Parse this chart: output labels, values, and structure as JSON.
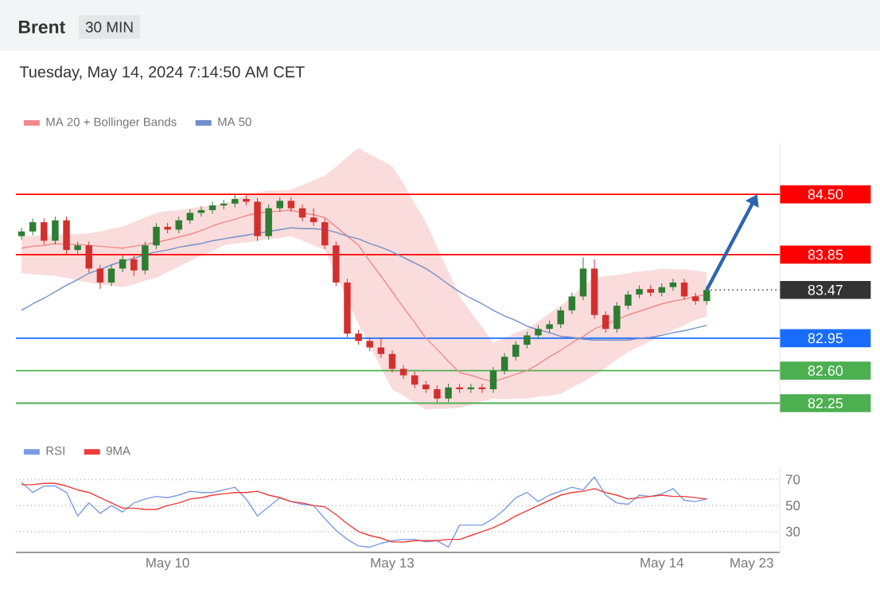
{
  "chart_data": [
    {
      "type": "candlestick",
      "title": "Brent",
      "subtitle": "30 MIN",
      "annotations": [
        "Tuesday, May 14, 2024 7:14:50 AM CET"
      ],
      "categories": [
        null,
        null,
        null,
        null,
        null,
        null,
        null,
        null,
        null,
        null,
        null,
        null,
        null,
        null,
        null,
        null,
        null,
        null,
        null,
        null,
        null,
        null,
        null,
        null,
        null,
        null,
        null,
        null,
        null,
        null,
        null,
        null,
        null,
        null,
        null,
        null,
        null,
        null,
        null,
        null,
        null,
        null,
        null,
        null,
        null,
        null,
        null,
        null,
        null,
        null,
        null,
        null,
        null,
        null,
        null,
        null,
        null,
        null,
        null,
        null,
        null,
        null,
        null,
        null,
        null,
        null,
        null,
        null
      ],
      "ohlc": [
        [
          84.05,
          84.14,
          84.01,
          84.1
        ],
        [
          84.1,
          84.24,
          84.06,
          84.2
        ],
        [
          84.2,
          84.24,
          83.96,
          84.0
        ],
        [
          84.0,
          84.26,
          83.96,
          84.22
        ],
        [
          84.22,
          84.26,
          83.86,
          83.9
        ],
        [
          83.9,
          83.99,
          83.86,
          83.95
        ],
        [
          83.95,
          83.99,
          83.66,
          83.7
        ],
        [
          83.7,
          83.74,
          83.48,
          83.55
        ],
        [
          83.55,
          83.74,
          83.51,
          83.7
        ],
        [
          83.7,
          83.84,
          83.66,
          83.8
        ],
        [
          83.8,
          83.84,
          83.62,
          83.68
        ],
        [
          83.68,
          83.99,
          83.64,
          83.95
        ],
        [
          83.95,
          84.19,
          83.91,
          84.15
        ],
        [
          84.15,
          84.19,
          84.08,
          84.12
        ],
        [
          84.12,
          84.26,
          84.08,
          84.22
        ],
        [
          84.22,
          84.34,
          84.18,
          84.3
        ],
        [
          84.3,
          84.37,
          84.26,
          84.33
        ],
        [
          84.33,
          84.42,
          84.29,
          84.38
        ],
        [
          84.38,
          84.44,
          84.34,
          84.4
        ],
        [
          84.4,
          84.5,
          84.36,
          84.45
        ],
        [
          84.45,
          84.49,
          84.38,
          84.42
        ],
        [
          84.42,
          84.46,
          84.0,
          84.05
        ],
        [
          84.05,
          84.39,
          84.01,
          84.35
        ],
        [
          84.35,
          84.47,
          84.31,
          84.43
        ],
        [
          84.43,
          84.47,
          84.31,
          84.35
        ],
        [
          84.35,
          84.39,
          84.21,
          84.25
        ],
        [
          84.25,
          84.35,
          84.16,
          84.2
        ],
        [
          84.2,
          84.24,
          83.91,
          83.95
        ],
        [
          83.95,
          83.99,
          83.51,
          83.55
        ],
        [
          83.55,
          83.59,
          82.96,
          83.0
        ],
        [
          83.0,
          83.04,
          82.88,
          82.92
        ],
        [
          82.92,
          82.96,
          82.81,
          82.85
        ],
        [
          82.85,
          82.95,
          82.74,
          82.78
        ],
        [
          82.78,
          82.82,
          82.58,
          82.62
        ],
        [
          82.62,
          82.66,
          82.51,
          82.55
        ],
        [
          82.55,
          82.59,
          82.41,
          82.45
        ],
        [
          82.45,
          82.49,
          82.36,
          82.4
        ],
        [
          82.4,
          82.44,
          82.26,
          82.3
        ],
        [
          82.3,
          82.46,
          82.26,
          82.42
        ],
        [
          82.42,
          82.46,
          82.36,
          82.4
        ],
        [
          82.4,
          82.46,
          82.36,
          82.42
        ],
        [
          82.42,
          82.46,
          82.36,
          82.4
        ],
        [
          82.4,
          82.64,
          82.36,
          82.6
        ],
        [
          82.6,
          82.79,
          82.56,
          82.75
        ],
        [
          82.75,
          82.92,
          82.71,
          82.88
        ],
        [
          82.88,
          83.02,
          82.84,
          82.98
        ],
        [
          82.98,
          83.09,
          82.94,
          83.05
        ],
        [
          83.05,
          83.14,
          83.01,
          83.1
        ],
        [
          83.1,
          83.29,
          83.06,
          83.25
        ],
        [
          83.25,
          83.44,
          83.21,
          83.4
        ],
        [
          83.4,
          83.82,
          83.36,
          83.7
        ],
        [
          83.7,
          83.8,
          83.16,
          83.2
        ],
        [
          83.2,
          83.24,
          83.01,
          83.05
        ],
        [
          83.05,
          83.34,
          83.01,
          83.3
        ],
        [
          83.3,
          83.46,
          83.26,
          83.42
        ],
        [
          83.42,
          83.52,
          83.38,
          83.48
        ],
        [
          83.48,
          83.52,
          83.4,
          83.44
        ],
        [
          83.44,
          83.54,
          83.4,
          83.5
        ],
        [
          83.5,
          83.59,
          83.46,
          83.55
        ],
        [
          83.55,
          83.59,
          83.36,
          83.4
        ],
        [
          83.4,
          83.44,
          83.31,
          83.35
        ],
        [
          83.35,
          83.51,
          83.31,
          83.47
        ],
        null,
        null,
        null,
        null,
        null,
        null
      ],
      "series": [
        {
          "name": "MA 20 + Bollinger Bands",
          "type": "line",
          "color": "#f08a8a",
          "values": [
            83.92,
            83.94,
            83.95,
            83.97,
            83.96,
            83.96,
            83.95,
            83.94,
            83.93,
            83.92,
            83.94,
            83.96,
            83.98,
            84.01,
            84.04,
            84.07,
            84.11,
            84.16,
            84.2,
            84.23,
            84.27,
            84.3,
            84.31,
            84.32,
            84.33,
            84.3,
            84.28,
            84.25,
            84.15,
            84.05,
            83.95,
            83.78,
            83.62,
            83.45,
            83.28,
            83.12,
            82.95,
            82.83,
            82.7,
            82.58,
            82.55,
            82.51,
            82.48,
            82.52,
            82.56,
            82.6,
            82.67,
            82.75,
            82.82,
            82.9,
            82.97,
            83.05,
            83.1,
            83.15,
            83.2,
            83.24,
            83.28,
            83.32,
            83.35,
            83.37,
            83.4,
            83.42,
            null,
            null,
            null,
            null,
            null,
            null
          ],
          "lower": [
            83.65,
            83.64,
            83.63,
            83.62,
            83.6,
            83.57,
            83.55,
            83.53,
            83.52,
            83.5,
            83.53,
            83.57,
            83.6,
            83.66,
            83.72,
            83.78,
            83.84,
            83.89,
            83.95,
            83.97,
            83.98,
            84.0,
            84.02,
            84.03,
            84.05,
            84.0,
            83.95,
            83.9,
            83.63,
            83.37,
            83.1,
            82.87,
            82.63,
            82.4,
            82.33,
            82.25,
            82.18,
            82.19,
            82.19,
            82.2,
            82.23,
            82.27,
            82.3,
            82.29,
            82.3,
            82.3,
            82.32,
            82.33,
            82.35,
            82.42,
            82.48,
            82.55,
            82.63,
            82.72,
            82.8,
            82.86,
            82.92,
            82.98,
            83.04,
            83.09,
            83.15,
            83.18,
            null,
            null,
            null,
            null,
            null,
            null
          ],
          "upper": [
            84.05,
            84.05,
            84.06,
            84.06,
            84.07,
            84.07,
            84.08,
            84.1,
            84.13,
            84.15,
            84.2,
            84.25,
            84.3,
            84.32,
            84.33,
            84.35,
            84.37,
            84.38,
            84.4,
            84.45,
            84.49,
            84.52,
            84.54,
            84.54,
            84.55,
            84.6,
            84.65,
            84.7,
            84.8,
            84.9,
            85.0,
            84.93,
            84.87,
            84.8,
            84.62,
            84.4,
            84.2,
            83.93,
            83.67,
            83.4,
            83.23,
            83.07,
            82.9,
            82.95,
            83.01,
            83.05,
            83.13,
            83.22,
            83.3,
            83.4,
            83.52,
            83.6,
            83.62,
            83.63,
            83.65,
            83.67,
            83.68,
            83.7,
            83.69,
            83.69,
            83.68,
            83.66,
            null,
            null,
            null,
            null,
            null,
            null
          ]
        },
        {
          "name": "MA 50",
          "type": "line",
          "color": "#6f8fc8",
          "values": [
            83.25,
            83.32,
            83.38,
            83.45,
            83.52,
            83.58,
            83.65,
            83.69,
            83.74,
            83.78,
            83.81,
            83.85,
            83.88,
            83.9,
            83.93,
            83.95,
            83.97,
            84.0,
            84.02,
            84.04,
            84.06,
            84.08,
            84.1,
            84.12,
            84.14,
            84.13,
            84.13,
            84.12,
            84.09,
            84.05,
            84.02,
            83.97,
            83.93,
            83.88,
            83.82,
            83.76,
            83.7,
            83.62,
            83.53,
            83.45,
            83.38,
            83.32,
            83.25,
            83.19,
            83.14,
            83.08,
            83.04,
            83.01,
            82.97,
            82.96,
            82.94,
            82.93,
            82.93,
            82.93,
            82.93,
            82.95,
            82.96,
            82.98,
            83.01,
            83.03,
            83.06,
            83.09,
            null,
            null,
            null,
            null,
            null,
            null
          ]
        }
      ],
      "ylim": [
        82.1,
        85.05
      ],
      "tick_labels": "y",
      "legend": "top left",
      "yticks": [
        {
          "value": 82.25,
          "label": "82.25"
        },
        {
          "value": 82.6,
          "label": "82.60"
        },
        {
          "value": 82.95,
          "label": "82.95"
        },
        {
          "value": 83.47,
          "label": "83.47"
        },
        {
          "value": 83.85,
          "label": "83.85"
        },
        {
          "value": 84.5,
          "label": "84.50"
        }
      ],
      "ref_lines": [
        {
          "axis": "y",
          "value": 84.5,
          "color": "#ff0000"
        },
        {
          "axis": "y",
          "value": 83.85,
          "color": "#ff0000"
        },
        {
          "axis": "y",
          "value": 83.47,
          "color": "#333333",
          "line_style": "dotted"
        },
        {
          "axis": "y",
          "value": 82.95,
          "color": "#1a6cff"
        },
        {
          "axis": "y",
          "value": 82.6,
          "color": "#4caf50"
        },
        {
          "axis": "y",
          "value": 82.25,
          "color": "#4caf50"
        }
      ]
    },
    {
      "type": "line",
      "legend": "top left",
      "grid": "y",
      "categories": [
        null,
        null,
        null,
        null,
        null,
        null,
        null,
        null,
        null,
        null,
        null,
        null,
        null,
        "May 10",
        null,
        null,
        null,
        null,
        null,
        null,
        null,
        null,
        null,
        null,
        null,
        null,
        null,
        null,
        null,
        null,
        null,
        null,
        null,
        "May 13",
        null,
        null,
        null,
        null,
        null,
        null,
        null,
        null,
        null,
        null,
        null,
        null,
        null,
        null,
        null,
        null,
        null,
        null,
        null,
        null,
        null,
        null,
        null,
        "May 14",
        null,
        null,
        null,
        null,
        null,
        null,
        null,
        "May 23",
        null,
        null
      ],
      "ylim": [
        14,
        80
      ],
      "yticks": [
        30,
        50,
        70
      ],
      "series": [
        {
          "name": "RSI",
          "color": "#7b9be6",
          "values": [
            68,
            60,
            65,
            65,
            60,
            42,
            52,
            44,
            50,
            45,
            52,
            55,
            57,
            56,
            58,
            61,
            60,
            60,
            62,
            64,
            55,
            42,
            49,
            56,
            53,
            51,
            50,
            40,
            31,
            24,
            19,
            18,
            21,
            23,
            24,
            24,
            22,
            23,
            18,
            35,
            35,
            35,
            40,
            47,
            56,
            60,
            53,
            58,
            61,
            64,
            62,
            72,
            58,
            52,
            51,
            58,
            57,
            59,
            63,
            54,
            53,
            55,
            null,
            null,
            null,
            null,
            null,
            null
          ]
        },
        {
          "name": "9MA",
          "color": "#f03c3c",
          "values": [
            66,
            66,
            67,
            67,
            65,
            62,
            60,
            56,
            52,
            48,
            48,
            47,
            47,
            50,
            52,
            55,
            56,
            58,
            59,
            60,
            60,
            61,
            58,
            56,
            53,
            52,
            50,
            49,
            43,
            36,
            30,
            27,
            25,
            22,
            22,
            23,
            23,
            23,
            24,
            24,
            27,
            30,
            33,
            37,
            42,
            46,
            50,
            54,
            58,
            60,
            61,
            63,
            60,
            58,
            55,
            56,
            57,
            58,
            57,
            57,
            56,
            55,
            null,
            null,
            null,
            null,
            null,
            null
          ]
        }
      ]
    }
  ]
}
